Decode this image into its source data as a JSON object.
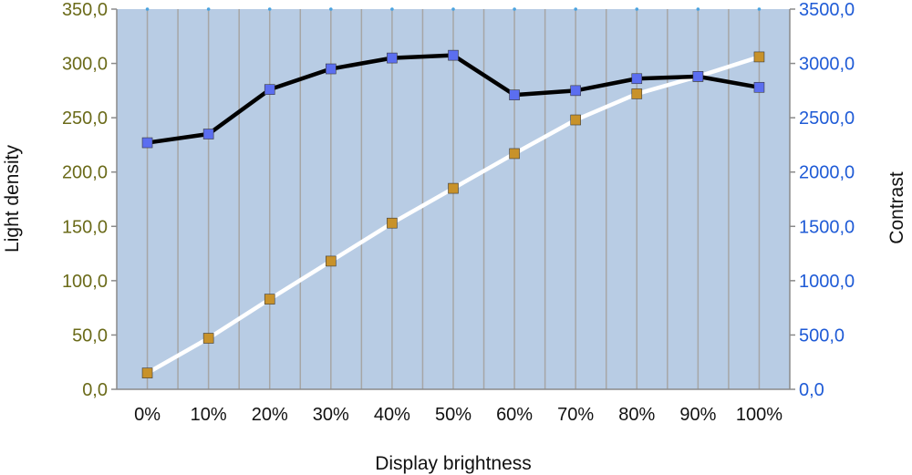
{
  "chart_data": {
    "type": "line",
    "categories": [
      "0%",
      "10%",
      "20%",
      "30%",
      "40%",
      "50%",
      "60%",
      "70%",
      "80%",
      "90%",
      "100%"
    ],
    "xlabel": "Display brightness",
    "ylabel_left": "Light density",
    "ylabel_right": "Contrast",
    "ylim_left": [
      0,
      350
    ],
    "ylim_right": [
      0,
      3500
    ],
    "yticks_left": [
      "0,0",
      "50,0",
      "100,0",
      "150,0",
      "200,0",
      "250,0",
      "300,0",
      "350,0"
    ],
    "yticks_right": [
      "0,0",
      "500,0",
      "1000,0",
      "1500,0",
      "2000,0",
      "2500,0",
      "3000,0",
      "3500,0"
    ],
    "grid": true,
    "colors": {
      "plot_bg": "#b8cce4",
      "grid": "#a6a6a6",
      "left_axis_text": "#6b6b1a",
      "right_axis_text": "#1f5bd6"
    },
    "series": [
      {
        "axis": "left",
        "values": [
          15,
          47,
          83,
          118,
          153,
          185,
          217,
          248,
          272,
          288,
          306
        ],
        "line_color": "#ffffff",
        "marker_color": "#c8922a"
      },
      {
        "axis": "right",
        "values": [
          2270,
          2350,
          2760,
          2950,
          3050,
          3075,
          2710,
          2750,
          2860,
          2880,
          2780
        ],
        "line_color": "#000000",
        "marker_color": "#5b6ef0"
      }
    ]
  }
}
